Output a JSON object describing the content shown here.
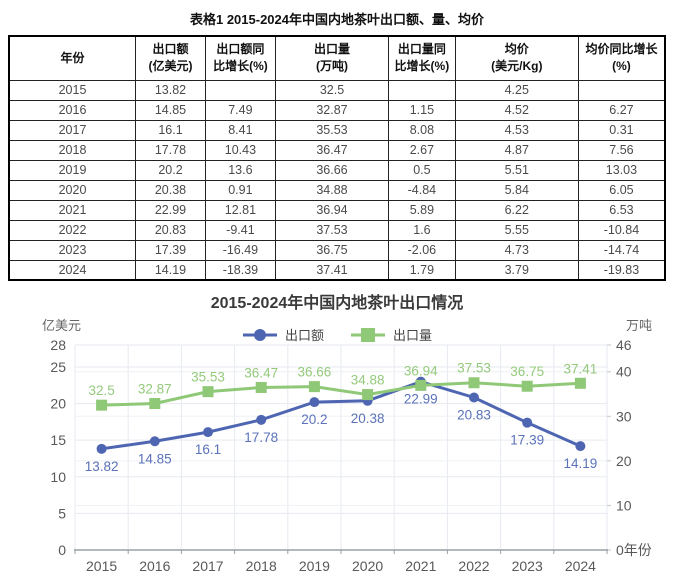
{
  "table": {
    "title": "表格1 2015-2024年中国内地茶叶出口额、量、均价",
    "headers": [
      "年份",
      "出口额\n(亿美元)",
      "出口额同\n比增长(%)",
      "出口量\n(万吨)",
      "出口量同\n比增长(%)",
      "均价\n(美元/Kg)",
      "均价同比增长\n(%)"
    ],
    "rows": [
      [
        "2015",
        "13.82",
        "",
        "32.5",
        "",
        "4.25",
        ""
      ],
      [
        "2016",
        "14.85",
        "7.49",
        "32.87",
        "1.15",
        "4.52",
        "6.27"
      ],
      [
        "2017",
        "16.1",
        "8.41",
        "35.53",
        "8.08",
        "4.53",
        "0.31"
      ],
      [
        "2018",
        "17.78",
        "10.43",
        "36.47",
        "2.67",
        "4.87",
        "7.56"
      ],
      [
        "2019",
        "20.2",
        "13.6",
        "36.66",
        "0.5",
        "5.51",
        "13.03"
      ],
      [
        "2020",
        "20.38",
        "0.91",
        "34.88",
        "-4.84",
        "5.84",
        "6.05"
      ],
      [
        "2021",
        "22.99",
        "12.81",
        "36.94",
        "5.89",
        "6.22",
        "6.53"
      ],
      [
        "2022",
        "20.83",
        "-9.41",
        "37.53",
        "1.6",
        "5.55",
        "-10.84"
      ],
      [
        "2023",
        "17.39",
        "-16.49",
        "36.75",
        "-2.06",
        "4.73",
        "-14.74"
      ],
      [
        "2024",
        "14.19",
        "-18.39",
        "37.41",
        "1.79",
        "3.79",
        "-19.83"
      ]
    ]
  },
  "chart_data": {
    "type": "line",
    "title": "2015-2024年中国内地茶叶出口情况",
    "categories": [
      "2015",
      "2016",
      "2017",
      "2018",
      "2019",
      "2020",
      "2021",
      "2022",
      "2023",
      "2024"
    ],
    "left_axis": {
      "label": "亿美元",
      "max": 28,
      "ticks": [
        28,
        25,
        20,
        15,
        10,
        5,
        0
      ]
    },
    "right_axis": {
      "label": "万吨",
      "max": 46,
      "ticks": [
        46,
        40,
        30,
        20,
        10,
        0
      ],
      "suffix": "年份"
    },
    "grid": true,
    "legend_position": "top-center",
    "series": [
      {
        "name": "出口额",
        "axis": "left",
        "marker": "circle",
        "color": "#4e66b2",
        "label_color": "#5a72b8",
        "label_position": "below",
        "values": [
          13.82,
          14.85,
          16.1,
          17.78,
          20.2,
          20.38,
          22.99,
          20.83,
          17.39,
          14.19
        ]
      },
      {
        "name": "出口量",
        "axis": "right",
        "marker": "square",
        "color": "#8fc877",
        "label_color": "#94ca7c",
        "label_position": "above",
        "values": [
          32.5,
          32.87,
          35.53,
          36.47,
          36.66,
          34.88,
          36.94,
          37.53,
          36.75,
          37.41
        ]
      }
    ]
  }
}
